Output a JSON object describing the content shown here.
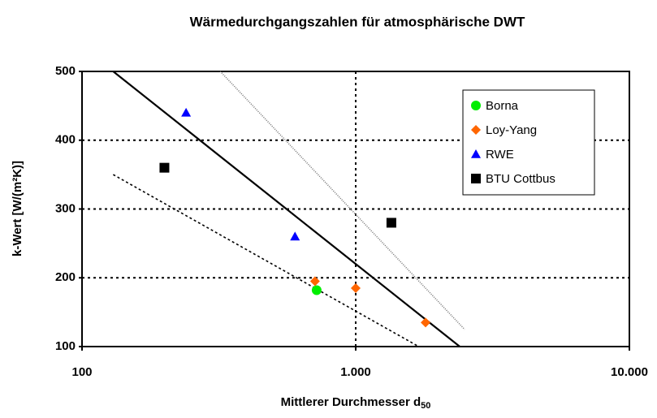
{
  "chart_data": {
    "type": "scatter",
    "title": "Wärmedurchgangszahlen für atmosphärische DWT",
    "y_label": "k-Wert [W/(m²K)]",
    "x_label": {
      "text": "Mittlerer Durchmesser d",
      "subscript": "50"
    },
    "x_log": true,
    "grid": true,
    "legend": "top-right",
    "xlim": [
      100,
      10000
    ],
    "xticks": [
      100,
      {
        "value": 1000,
        "label": "1.000"
      },
      {
        "value": 10000,
        "label": "10.000"
      }
    ],
    "ylim": [
      100,
      500
    ],
    "yticks": [
      100,
      200,
      300,
      400,
      500
    ],
    "series": [
      {
        "name": "Borna",
        "color": "#00ee00",
        "marker": "circle",
        "x": [
          720
        ],
        "values": [
          182
        ]
      },
      {
        "name": "Loy-Yang",
        "color": "#ff6600",
        "marker": "diamond",
        "x": [
          710,
          1000,
          1800
        ],
        "values": [
          195,
          185,
          135
        ]
      },
      {
        "name": "RWE",
        "color": "#0000ff",
        "marker": "triangle",
        "x": [
          240,
          600
        ],
        "values": [
          440,
          260
        ]
      },
      {
        "name": "BTU Cottbus",
        "color": "#000000",
        "marker": "square",
        "x": [
          200,
          1350
        ],
        "values": [
          360,
          280
        ]
      }
    ],
    "lines": [
      {
        "color": "#000000",
        "style": "solid",
        "x": [
          130,
          2400
        ],
        "values": [
          500,
          100
        ]
      },
      {
        "color": "#000000",
        "style": "dashed",
        "x": [
          130,
          1700
        ],
        "values": [
          350,
          100
        ]
      },
      {
        "color": "#777777",
        "style": "dotted",
        "x": [
          320,
          2500
        ],
        "values": [
          500,
          125
        ]
      }
    ]
  }
}
